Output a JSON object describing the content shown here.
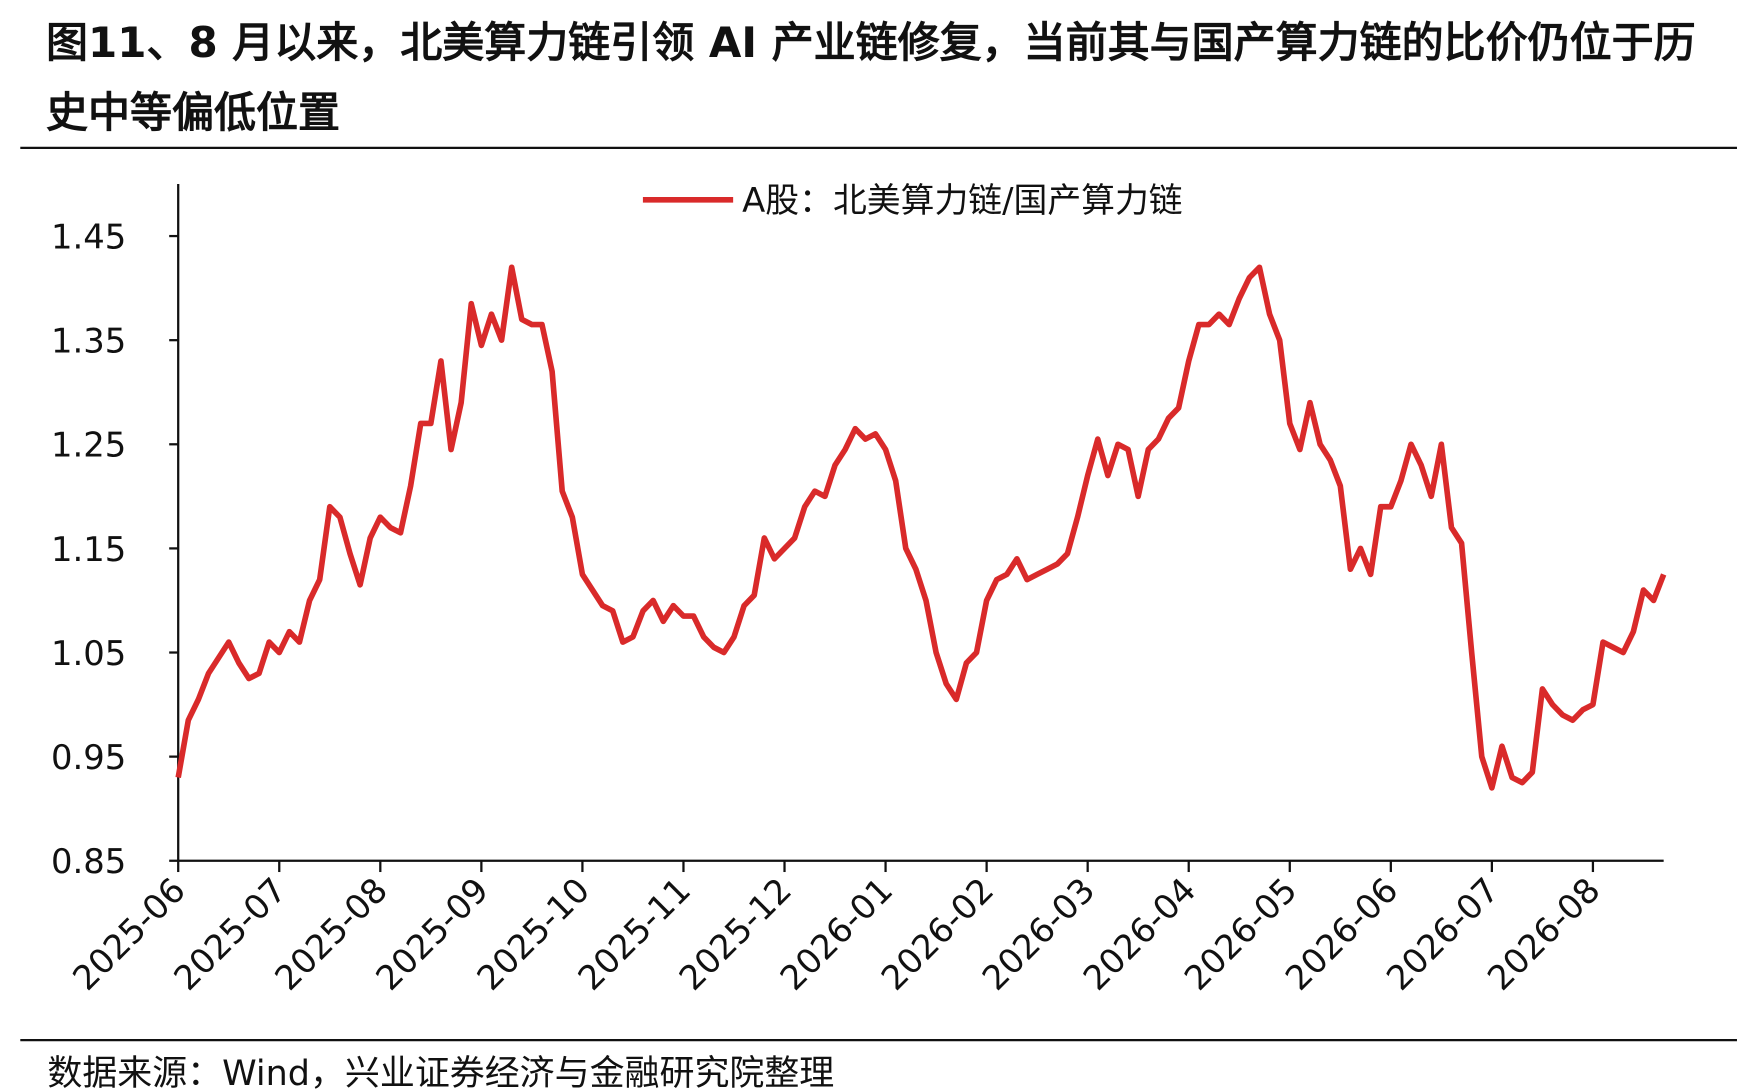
{
  "chart_data": {
    "type": "line",
    "title": "图11、8 月以来，北美算力链引领 AI 产业链修复，当前其与国产算力链的比价仍位于历史中等偏低位置",
    "source": "数据来源：Wind，兴业证券经济与金融研究院整理",
    "legend": "top",
    "categories": [
      "2025-06",
      null,
      null,
      null,
      null,
      null,
      null,
      null,
      null,
      null,
      "2025-07",
      null,
      null,
      null,
      null,
      null,
      null,
      null,
      null,
      null,
      "2025-08",
      null,
      null,
      null,
      null,
      null,
      null,
      null,
      null,
      null,
      "2025-09",
      null,
      null,
      null,
      null,
      null,
      null,
      null,
      null,
      null,
      "2025-10",
      null,
      null,
      null,
      null,
      null,
      null,
      null,
      null,
      null,
      "2025-11",
      null,
      null,
      null,
      null,
      null,
      null,
      null,
      null,
      null,
      "2025-12",
      null,
      null,
      null,
      null,
      null,
      null,
      null,
      null,
      null,
      "2026-01",
      null,
      null,
      null,
      null,
      null,
      null,
      null,
      null,
      null,
      "2026-02",
      null,
      null,
      null,
      null,
      null,
      null,
      null,
      null,
      null,
      "2026-03",
      null,
      null,
      null,
      null,
      null,
      null,
      null,
      null,
      null,
      "2026-04",
      null,
      null,
      null,
      null,
      null,
      null,
      null,
      null,
      null,
      "2026-05",
      null,
      null,
      null,
      null,
      null,
      null,
      null,
      null,
      null,
      "2026-06",
      null,
      null,
      null,
      null,
      null,
      null,
      null,
      null,
      null,
      "2026-07",
      null,
      null,
      null,
      null,
      null,
      null,
      null,
      null,
      null,
      "2026-08",
      null,
      null,
      null,
      null,
      null,
      null,
      null
    ],
    "series": [
      {
        "name": "A股：北美算力链/国产算力链",
        "color": "#d92a2a",
        "values": [
          0.93,
          0.985,
          1.005,
          1.03,
          1.045,
          1.06,
          1.04,
          1.025,
          1.03,
          1.06,
          1.05,
          1.07,
          1.06,
          1.1,
          1.12,
          1.19,
          1.18,
          1.145,
          1.115,
          1.16,
          1.18,
          1.17,
          1.165,
          1.21,
          1.27,
          1.27,
          1.33,
          1.245,
          1.29,
          1.385,
          1.345,
          1.375,
          1.35,
          1.42,
          1.37,
          1.365,
          1.365,
          1.32,
          1.205,
          1.18,
          1.125,
          1.11,
          1.095,
          1.09,
          1.06,
          1.065,
          1.09,
          1.1,
          1.08,
          1.095,
          1.085,
          1.085,
          1.065,
          1.055,
          1.05,
          1.065,
          1.095,
          1.105,
          1.16,
          1.14,
          1.15,
          1.16,
          1.19,
          1.205,
          1.2,
          1.23,
          1.245,
          1.265,
          1.255,
          1.26,
          1.245,
          1.215,
          1.15,
          1.13,
          1.1,
          1.05,
          1.02,
          1.005,
          1.04,
          1.05,
          1.1,
          1.12,
          1.125,
          1.14,
          1.12,
          1.125,
          1.13,
          1.135,
          1.145,
          1.18,
          1.22,
          1.255,
          1.22,
          1.25,
          1.245,
          1.2,
          1.245,
          1.255,
          1.275,
          1.285,
          1.33,
          1.365,
          1.365,
          1.375,
          1.365,
          1.39,
          1.41,
          1.42,
          1.375,
          1.35,
          1.27,
          1.245,
          1.29,
          1.25,
          1.235,
          1.21,
          1.13,
          1.15,
          1.125,
          1.19,
          1.19,
          1.215,
          1.25,
          1.23,
          1.2,
          1.25,
          1.17,
          1.155,
          1.05,
          0.95,
          0.92,
          0.96,
          0.93,
          0.925,
          0.935,
          1.015,
          1.0,
          0.99,
          0.985,
          0.995,
          1.0,
          1.06,
          1.055,
          1.05,
          1.07,
          1.11,
          1.1,
          1.125
        ]
      }
    ],
    "ylim": [
      0.85,
      1.5
    ],
    "yticks": [
      0.85,
      0.95,
      1.05,
      1.15,
      1.25,
      1.35,
      1.45
    ]
  }
}
